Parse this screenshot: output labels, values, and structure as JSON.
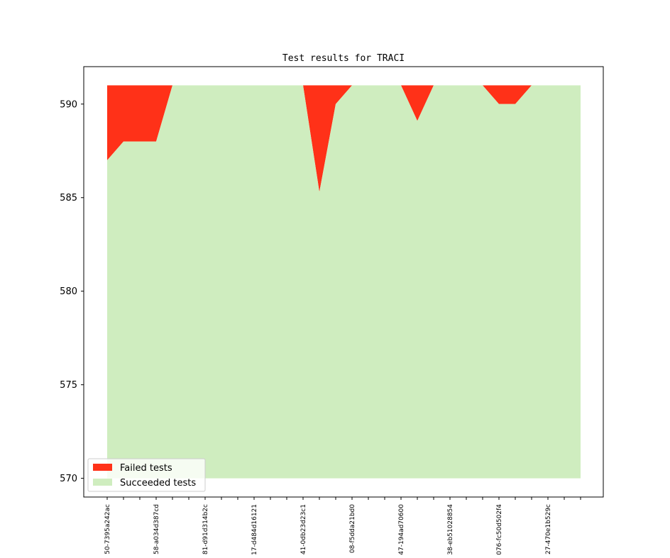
{
  "chart_data": {
    "type": "area",
    "title": "Test results for TRACI",
    "xlabel": "",
    "ylabel": "",
    "ylim": [
      569.0,
      592.0
    ],
    "yticks": [
      570,
      575,
      580,
      585,
      590
    ],
    "grid": false,
    "legend_position": "lower-left",
    "x_count": 30,
    "x_tick_labels": [
      {
        "index": 0,
        "label": "50-7395a242ac"
      },
      {
        "index": 3,
        "label": "58-a034d387cd"
      },
      {
        "index": 6,
        "label": "81-d91d314b2c"
      },
      {
        "index": 9,
        "label": "17-d484d16121"
      },
      {
        "index": 12,
        "label": "41-0db23d23c1"
      },
      {
        "index": 15,
        "label": "08-f5dda21bd0"
      },
      {
        "index": 18,
        "label": "47-194ad70600"
      },
      {
        "index": 21,
        "label": "38-eb51028854"
      },
      {
        "index": 24,
        "label": "076-fc50d502f4"
      },
      {
        "index": 27,
        "label": "27-470e1b529c"
      }
    ],
    "series": [
      {
        "name": "Succeeded tests",
        "color": "#cfedbf",
        "values": [
          587,
          588,
          588,
          588,
          591,
          591,
          591,
          591,
          591,
          591,
          591,
          591,
          591,
          585.3,
          590,
          591,
          591,
          591,
          591,
          589.1,
          591,
          591,
          591,
          591,
          590,
          590,
          591,
          591,
          591,
          591
        ]
      },
      {
        "name": "Failed tests",
        "color": "#ff3118",
        "values": [
          4,
          3,
          3,
          3,
          0,
          0,
          0,
          0,
          0,
          0,
          0,
          0,
          0,
          5.7,
          1,
          0,
          0,
          0,
          0,
          1.9,
          0,
          0,
          0,
          0,
          1,
          1,
          0,
          0,
          0,
          0
        ]
      }
    ],
    "baseline": 570
  }
}
